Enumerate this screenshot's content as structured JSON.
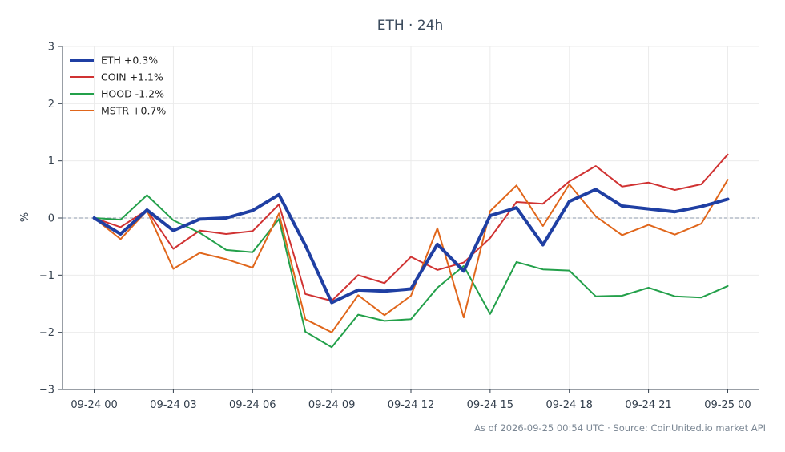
{
  "chart_data": {
    "type": "line",
    "title": "ETH · 24h",
    "xlabel": "",
    "ylabel": "%",
    "ylim": [
      -3,
      3
    ],
    "y_ticks": [
      -3,
      -2,
      -1,
      0,
      1,
      2,
      3
    ],
    "y_tick_labels": [
      "−3",
      "−2",
      "−1",
      "0",
      "1",
      "2",
      "3"
    ],
    "x_tick_labels": [
      "09-24 00",
      "09-24 03",
      "09-24 06",
      "09-24 09",
      "09-24 12",
      "09-24 15",
      "09-24 18",
      "09-24 21",
      "09-25 00"
    ],
    "x_hours": [
      0,
      1,
      2,
      3,
      4,
      5,
      6,
      7,
      8,
      9,
      10,
      11,
      12,
      13,
      14,
      15,
      16,
      17,
      18,
      19,
      20,
      21,
      22,
      23,
      24
    ],
    "grid": true,
    "zero_line": true,
    "legend_position": "top-left",
    "series": [
      {
        "name": "ETH +0.3%",
        "color": "#1f3fa3",
        "emphasis": true,
        "values": [
          0.0,
          -0.28,
          0.14,
          -0.22,
          -0.02,
          0.0,
          0.13,
          0.41,
          -0.48,
          -1.48,
          -1.26,
          -1.28,
          -1.24,
          -0.46,
          -0.93,
          0.04,
          0.18,
          -0.47,
          0.29,
          0.5,
          0.21,
          0.16,
          0.11,
          0.2,
          0.33
        ]
      },
      {
        "name": "COIN +1.1%",
        "color": "#d03232",
        "emphasis": false,
        "values": [
          0.0,
          -0.16,
          0.14,
          -0.54,
          -0.22,
          -0.28,
          -0.23,
          0.24,
          -1.33,
          -1.45,
          -1.0,
          -1.14,
          -0.68,
          -0.91,
          -0.78,
          -0.35,
          0.28,
          0.25,
          0.64,
          0.91,
          0.55,
          0.62,
          0.49,
          0.59,
          1.11
        ]
      },
      {
        "name": "HOOD -1.2%",
        "color": "#23a04a",
        "emphasis": false,
        "values": [
          0.0,
          -0.03,
          0.4,
          -0.04,
          -0.26,
          -0.56,
          -0.6,
          -0.02,
          -1.99,
          -2.26,
          -1.69,
          -1.8,
          -1.77,
          -1.22,
          -0.84,
          -1.68,
          -0.77,
          -0.9,
          -0.92,
          -1.37,
          -1.36,
          -1.22,
          -1.37,
          -1.39,
          -1.19
        ]
      },
      {
        "name": "MSTR +0.7%",
        "color": "#e0661b",
        "emphasis": false,
        "values": [
          0.0,
          -0.37,
          0.13,
          -0.89,
          -0.61,
          -0.72,
          -0.87,
          0.08,
          -1.77,
          -2.0,
          -1.35,
          -1.7,
          -1.36,
          -0.18,
          -1.74,
          0.12,
          0.57,
          -0.14,
          0.59,
          0.03,
          -0.3,
          -0.12,
          -0.29,
          -0.1,
          0.67
        ]
      }
    ]
  },
  "footer": "As of 2026-09-25 00:54 UTC · Source: CoinUnited.io market API"
}
